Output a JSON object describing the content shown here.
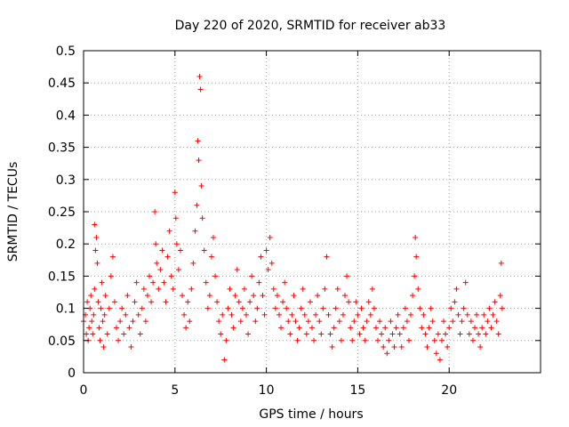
{
  "chart_data": {
    "type": "scatter",
    "title": "Day 220 of 2020, SRMTID for receiver ab33",
    "xlabel": "GPS time / hours",
    "ylabel": "SRMTID / TECUs",
    "xlim": [
      0,
      25
    ],
    "ylim": [
      0,
      0.5
    ],
    "xticks": [
      0,
      5,
      10,
      15,
      20
    ],
    "xtick_labels": [
      "0",
      "5",
      "10",
      "15",
      "20"
    ],
    "yticks": [
      0,
      0.05,
      0.1,
      0.15,
      0.2,
      0.25,
      0.3,
      0.35,
      0.4,
      0.45,
      0.5
    ],
    "ytick_labels": [
      "0",
      "0.05",
      "0.1",
      "0.15",
      "0.2",
      "0.25",
      "0.3",
      "0.35",
      "0.4",
      "0.45",
      "0.5"
    ],
    "grid": true,
    "marker": "+",
    "series": [
      {
        "name": "SRMTID",
        "color": "#ff0000",
        "points": [
          [
            0.0,
            0.08
          ],
          [
            0.1,
            0.09
          ],
          [
            0.15,
            0.06
          ],
          [
            0.2,
            0.11
          ],
          [
            0.25,
            0.05
          ],
          [
            0.3,
            0.07
          ],
          [
            0.35,
            0.1
          ],
          [
            0.4,
            0.12
          ],
          [
            0.45,
            0.08
          ],
          [
            0.5,
            0.06
          ],
          [
            0.55,
            0.09
          ],
          [
            0.6,
            0.13
          ],
          [
            0.6,
            0.23
          ],
          [
            0.65,
            0.19
          ],
          [
            0.7,
            0.21
          ],
          [
            0.75,
            0.17
          ],
          [
            0.8,
            0.11
          ],
          [
            0.85,
            0.07
          ],
          [
            0.9,
            0.05
          ],
          [
            0.95,
            0.1
          ],
          [
            1.0,
            0.14
          ],
          [
            1.05,
            0.08
          ],
          [
            1.1,
            0.04
          ],
          [
            1.15,
            0.09
          ],
          [
            1.2,
            0.12
          ],
          [
            1.3,
            0.06
          ],
          [
            1.4,
            0.1
          ],
          [
            1.5,
            0.15
          ],
          [
            1.6,
            0.18
          ],
          [
            1.7,
            0.11
          ],
          [
            1.8,
            0.07
          ],
          [
            1.9,
            0.05
          ],
          [
            2.0,
            0.08
          ],
          [
            2.1,
            0.1
          ],
          [
            2.2,
            0.06
          ],
          [
            2.3,
            0.09
          ],
          [
            2.4,
            0.12
          ],
          [
            2.5,
            0.07
          ],
          [
            2.6,
            0.04
          ],
          [
            2.7,
            0.08
          ],
          [
            2.8,
            0.11
          ],
          [
            2.9,
            0.14
          ],
          [
            3.0,
            0.09
          ],
          [
            3.1,
            0.06
          ],
          [
            3.2,
            0.1
          ],
          [
            3.3,
            0.13
          ],
          [
            3.4,
            0.08
          ],
          [
            3.5,
            0.12
          ],
          [
            3.6,
            0.15
          ],
          [
            3.7,
            0.11
          ],
          [
            3.8,
            0.14
          ],
          [
            3.9,
            0.25
          ],
          [
            3.95,
            0.2
          ],
          [
            4.0,
            0.17
          ],
          [
            4.1,
            0.13
          ],
          [
            4.2,
            0.16
          ],
          [
            4.3,
            0.19
          ],
          [
            4.4,
            0.14
          ],
          [
            4.5,
            0.11
          ],
          [
            4.6,
            0.18
          ],
          [
            4.7,
            0.22
          ],
          [
            4.8,
            0.15
          ],
          [
            4.9,
            0.13
          ],
          [
            5.0,
            0.28
          ],
          [
            5.05,
            0.24
          ],
          [
            5.1,
            0.2
          ],
          [
            5.2,
            0.16
          ],
          [
            5.3,
            0.19
          ],
          [
            5.4,
            0.12
          ],
          [
            5.5,
            0.09
          ],
          [
            5.6,
            0.07
          ],
          [
            5.7,
            0.11
          ],
          [
            5.8,
            0.08
          ],
          [
            5.9,
            0.13
          ],
          [
            6.0,
            0.17
          ],
          [
            6.1,
            0.22
          ],
          [
            6.2,
            0.26
          ],
          [
            6.25,
            0.36
          ],
          [
            6.3,
            0.33
          ],
          [
            6.35,
            0.46
          ],
          [
            6.4,
            0.44
          ],
          [
            6.45,
            0.29
          ],
          [
            6.5,
            0.24
          ],
          [
            6.6,
            0.19
          ],
          [
            6.7,
            0.14
          ],
          [
            6.8,
            0.1
          ],
          [
            6.9,
            0.12
          ],
          [
            7.0,
            0.18
          ],
          [
            7.1,
            0.21
          ],
          [
            7.2,
            0.15
          ],
          [
            7.3,
            0.11
          ],
          [
            7.4,
            0.08
          ],
          [
            7.5,
            0.06
          ],
          [
            7.6,
            0.09
          ],
          [
            7.7,
            0.02
          ],
          [
            7.8,
            0.05
          ],
          [
            7.9,
            0.1
          ],
          [
            8.0,
            0.13
          ],
          [
            8.1,
            0.09
          ],
          [
            8.2,
            0.07
          ],
          [
            8.3,
            0.12
          ],
          [
            8.4,
            0.16
          ],
          [
            8.5,
            0.11
          ],
          [
            8.6,
            0.08
          ],
          [
            8.7,
            0.1
          ],
          [
            8.8,
            0.13
          ],
          [
            8.9,
            0.09
          ],
          [
            9.0,
            0.06
          ],
          [
            9.1,
            0.11
          ],
          [
            9.2,
            0.15
          ],
          [
            9.3,
            0.12
          ],
          [
            9.4,
            0.08
          ],
          [
            9.5,
            0.1
          ],
          [
            9.6,
            0.14
          ],
          [
            9.7,
            0.18
          ],
          [
            9.8,
            0.12
          ],
          [
            9.9,
            0.09
          ],
          [
            10.0,
            0.19
          ],
          [
            10.1,
            0.16
          ],
          [
            10.2,
            0.21
          ],
          [
            10.3,
            0.17
          ],
          [
            10.4,
            0.13
          ],
          [
            10.5,
            0.1
          ],
          [
            10.6,
            0.12
          ],
          [
            10.7,
            0.09
          ],
          [
            10.8,
            0.07
          ],
          [
            10.9,
            0.11
          ],
          [
            11.0,
            0.14
          ],
          [
            11.1,
            0.1
          ],
          [
            11.2,
            0.08
          ],
          [
            11.3,
            0.06
          ],
          [
            11.4,
            0.09
          ],
          [
            11.5,
            0.12
          ],
          [
            11.6,
            0.08
          ],
          [
            11.7,
            0.05
          ],
          [
            11.8,
            0.07
          ],
          [
            11.9,
            0.1
          ],
          [
            12.0,
            0.13
          ],
          [
            12.1,
            0.09
          ],
          [
            12.2,
            0.06
          ],
          [
            12.3,
            0.08
          ],
          [
            12.4,
            0.11
          ],
          [
            12.5,
            0.07
          ],
          [
            12.6,
            0.05
          ],
          [
            12.7,
            0.09
          ],
          [
            12.8,
            0.12
          ],
          [
            12.9,
            0.08
          ],
          [
            13.0,
            0.06
          ],
          [
            13.1,
            0.1
          ],
          [
            13.2,
            0.13
          ],
          [
            13.3,
            0.18
          ],
          [
            13.4,
            0.09
          ],
          [
            13.5,
            0.06
          ],
          [
            13.6,
            0.04
          ],
          [
            13.7,
            0.07
          ],
          [
            13.8,
            0.1
          ],
          [
            13.9,
            0.13
          ],
          [
            14.0,
            0.08
          ],
          [
            14.1,
            0.05
          ],
          [
            14.2,
            0.09
          ],
          [
            14.3,
            0.12
          ],
          [
            14.4,
            0.15
          ],
          [
            14.5,
            0.11
          ],
          [
            14.6,
            0.07
          ],
          [
            14.7,
            0.05
          ],
          [
            14.8,
            0.08
          ],
          [
            14.9,
            0.11
          ],
          [
            15.0,
            0.09
          ],
          [
            15.1,
            0.06
          ],
          [
            15.2,
            0.1
          ],
          [
            15.3,
            0.07
          ],
          [
            15.4,
            0.05
          ],
          [
            15.5,
            0.08
          ],
          [
            15.6,
            0.11
          ],
          [
            15.7,
            0.09
          ],
          [
            15.8,
            0.13
          ],
          [
            15.9,
            0.1
          ],
          [
            16.0,
            0.07
          ],
          [
            16.1,
            0.05
          ],
          [
            16.2,
            0.08
          ],
          [
            16.3,
            0.06
          ],
          [
            16.4,
            0.04
          ],
          [
            16.5,
            0.07
          ],
          [
            16.6,
            0.03
          ],
          [
            16.7,
            0.05
          ],
          [
            16.8,
            0.08
          ],
          [
            16.9,
            0.06
          ],
          [
            17.0,
            0.04
          ],
          [
            17.1,
            0.07
          ],
          [
            17.2,
            0.09
          ],
          [
            17.3,
            0.06
          ],
          [
            17.4,
            0.04
          ],
          [
            17.5,
            0.07
          ],
          [
            17.6,
            0.1
          ],
          [
            17.7,
            0.08
          ],
          [
            17.8,
            0.05
          ],
          [
            17.9,
            0.09
          ],
          [
            18.0,
            0.12
          ],
          [
            18.1,
            0.15
          ],
          [
            18.15,
            0.21
          ],
          [
            18.2,
            0.18
          ],
          [
            18.3,
            0.13
          ],
          [
            18.4,
            0.1
          ],
          [
            18.5,
            0.07
          ],
          [
            18.6,
            0.09
          ],
          [
            18.7,
            0.06
          ],
          [
            18.8,
            0.04
          ],
          [
            18.9,
            0.07
          ],
          [
            19.0,
            0.1
          ],
          [
            19.1,
            0.08
          ],
          [
            19.2,
            0.05
          ],
          [
            19.3,
            0.03
          ],
          [
            19.4,
            0.06
          ],
          [
            19.5,
            0.02
          ],
          [
            19.6,
            0.05
          ],
          [
            19.7,
            0.08
          ],
          [
            19.8,
            0.06
          ],
          [
            19.9,
            0.04
          ],
          [
            20.0,
            0.07
          ],
          [
            20.1,
            0.1
          ],
          [
            20.2,
            0.08
          ],
          [
            20.3,
            0.11
          ],
          [
            20.4,
            0.13
          ],
          [
            20.5,
            0.09
          ],
          [
            20.6,
            0.06
          ],
          [
            20.7,
            0.08
          ],
          [
            20.8,
            0.1
          ],
          [
            20.9,
            0.14
          ],
          [
            21.0,
            0.09
          ],
          [
            21.1,
            0.06
          ],
          [
            21.2,
            0.08
          ],
          [
            21.3,
            0.05
          ],
          [
            21.4,
            0.07
          ],
          [
            21.5,
            0.09
          ],
          [
            21.6,
            0.06
          ],
          [
            21.7,
            0.04
          ],
          [
            21.8,
            0.07
          ],
          [
            21.9,
            0.09
          ],
          [
            22.0,
            0.06
          ],
          [
            22.1,
            0.08
          ],
          [
            22.2,
            0.1
          ],
          [
            22.3,
            0.07
          ],
          [
            22.4,
            0.09
          ],
          [
            22.5,
            0.11
          ],
          [
            22.6,
            0.08
          ],
          [
            22.7,
            0.06
          ],
          [
            22.8,
            0.12
          ],
          [
            22.85,
            0.17
          ],
          [
            22.9,
            0.1
          ]
        ]
      }
    ]
  }
}
